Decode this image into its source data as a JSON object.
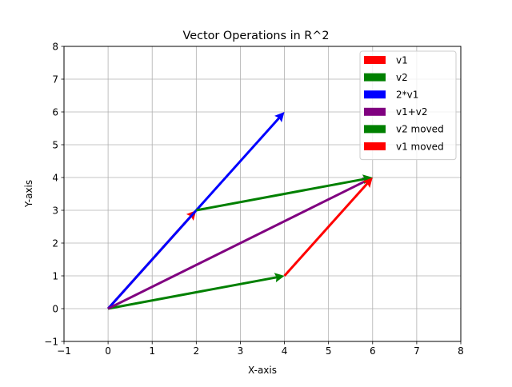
{
  "chart_data": {
    "type": "quiver",
    "title": "Vector Operations in R^2",
    "xlabel": "X-axis",
    "ylabel": "Y-axis",
    "xlim": [
      -1,
      8
    ],
    "ylim": [
      -1,
      8
    ],
    "xticks": [
      -1,
      0,
      1,
      2,
      3,
      4,
      5,
      6,
      7,
      8
    ],
    "yticks": [
      -1,
      0,
      1,
      2,
      3,
      4,
      5,
      6,
      7,
      8
    ],
    "xtick_labels": [
      "−1",
      "0",
      "1",
      "2",
      "3",
      "4",
      "5",
      "6",
      "7",
      "8"
    ],
    "ytick_labels": [
      "−1",
      "0",
      "1",
      "2",
      "3",
      "4",
      "5",
      "6",
      "7",
      "8"
    ],
    "grid": true,
    "legend_position": "top-right",
    "series": [
      {
        "name": "v1",
        "color": "#ff0000",
        "start": [
          0,
          0
        ],
        "vector": [
          2,
          3
        ]
      },
      {
        "name": "v2",
        "color": "#008000",
        "start": [
          0,
          0
        ],
        "vector": [
          4,
          1
        ]
      },
      {
        "name": "2*v1",
        "color": "#0000ff",
        "start": [
          0,
          0
        ],
        "vector": [
          4,
          6
        ]
      },
      {
        "name": "v1+v2",
        "color": "#800080",
        "start": [
          0,
          0
        ],
        "vector": [
          6,
          4
        ]
      },
      {
        "name": "v2 moved",
        "color": "#008000",
        "start": [
          2,
          3
        ],
        "vector": [
          4,
          1
        ]
      },
      {
        "name": "v1 moved",
        "color": "#ff0000",
        "start": [
          4,
          1
        ],
        "vector": [
          2,
          3
        ]
      }
    ]
  }
}
